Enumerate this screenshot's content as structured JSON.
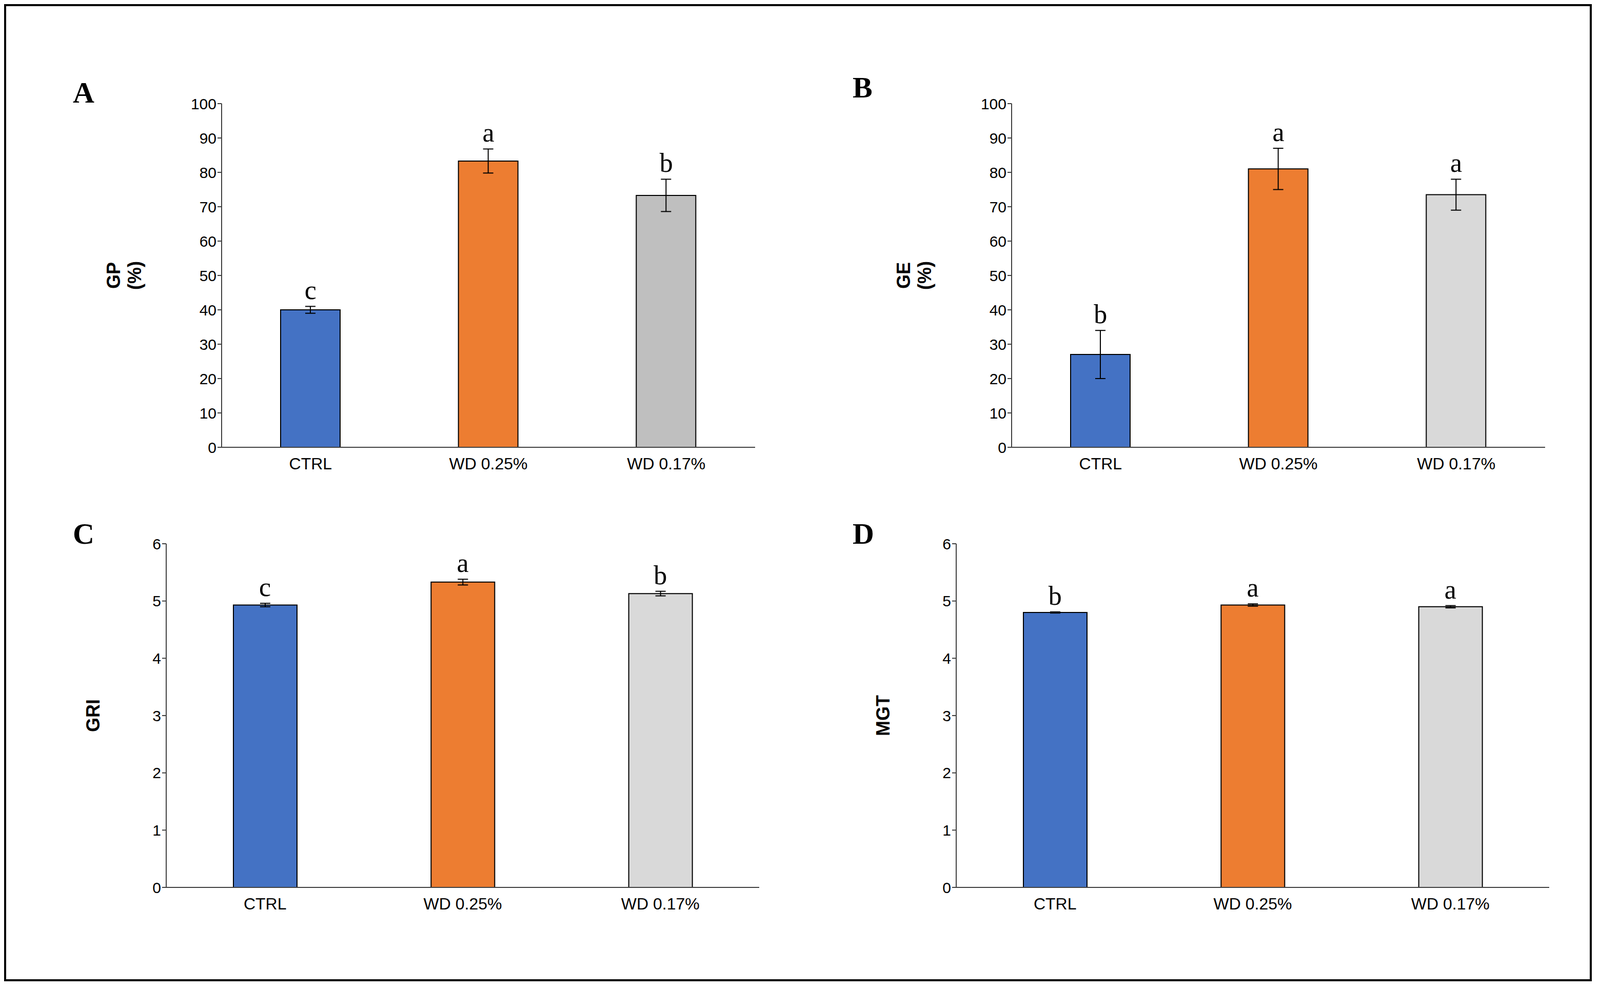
{
  "chart_data": [
    {
      "type": "bar",
      "title": "A",
      "ylabel": "GP (%)",
      "categories": [
        "CTRL",
        "WD 0.25%",
        "WD 0.17%"
      ],
      "values": [
        40,
        83.3,
        73.3
      ],
      "errors": [
        1,
        3.5,
        4.7
      ],
      "annotations": [
        "c",
        "a",
        "b"
      ],
      "colors": [
        "#4472c4",
        "#ed7d31",
        "#bfbfbf"
      ],
      "ylim": [
        0,
        100
      ],
      "yticks": [
        0,
        10,
        20,
        30,
        40,
        50,
        60,
        70,
        80,
        90,
        100
      ],
      "grid": false
    },
    {
      "type": "bar",
      "title": "B",
      "ylabel": "GE (%)",
      "categories": [
        "CTRL",
        "WD 0.25%",
        "WD 0.17%"
      ],
      "values": [
        27,
        81,
        73.5
      ],
      "errors": [
        7,
        6,
        4.5
      ],
      "annotations": [
        "b",
        "a",
        "a"
      ],
      "colors": [
        "#4472c4",
        "#ed7d31",
        "#d9d9d9"
      ],
      "ylim": [
        0,
        100
      ],
      "yticks": [
        0,
        10,
        20,
        30,
        40,
        50,
        60,
        70,
        80,
        90,
        100
      ],
      "grid": false
    },
    {
      "type": "bar",
      "title": "C",
      "ylabel": "GRI",
      "categories": [
        "CTRL",
        "WD 0.25%",
        "WD 0.17%"
      ],
      "values": [
        4.93,
        5.33,
        5.13
      ],
      "errors": [
        0.03,
        0.05,
        0.04
      ],
      "annotations": [
        "c",
        "a",
        "b"
      ],
      "colors": [
        "#4472c4",
        "#ed7d31",
        "#d9d9d9"
      ],
      "ylim": [
        0,
        6
      ],
      "yticks": [
        0,
        1,
        2,
        3,
        4,
        5,
        6
      ],
      "grid": false
    },
    {
      "type": "bar",
      "title": "D",
      "ylabel": "MGT",
      "categories": [
        "CTRL",
        "WD 0.25%",
        "WD 0.17%"
      ],
      "values": [
        4.8,
        4.93,
        4.9
      ],
      "errors": [
        0.01,
        0.02,
        0.02
      ],
      "annotations": [
        "b",
        "a",
        "a"
      ],
      "colors": [
        "#4472c4",
        "#ed7d31",
        "#d9d9d9"
      ],
      "ylim": [
        0,
        6
      ],
      "yticks": [
        0,
        1,
        2,
        3,
        4,
        5,
        6
      ],
      "grid": false
    }
  ]
}
